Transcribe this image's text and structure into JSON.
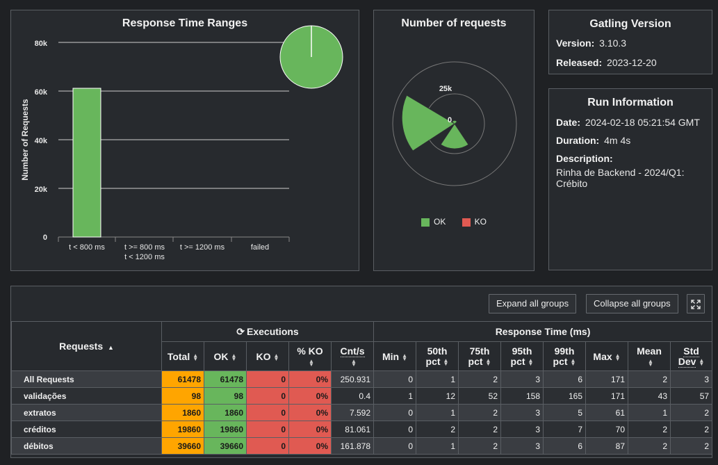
{
  "response_time_ranges": {
    "title": "Response Time Ranges",
    "ylabel": "Number of Requests",
    "y_ticks": [
      "80k",
      "60k",
      "40k",
      "20k",
      "0"
    ],
    "categories": [
      "t < 800 ms",
      "t >= 800 ms",
      "t < 1200 ms",
      "t >= 1200 ms",
      "failed"
    ]
  },
  "number_of_requests": {
    "title": "Number of requests",
    "tick_outer": "25k",
    "tick_inner": "0",
    "legend": [
      {
        "label": "OK",
        "color": "#68b65c"
      },
      {
        "label": "KO",
        "color": "#e05a52"
      }
    ]
  },
  "gatling_version": {
    "title": "Gatling Version",
    "version_label": "Version:",
    "version": "3.10.3",
    "released_label": "Released:",
    "released": "2023-12-20"
  },
  "run_information": {
    "title": "Run Information",
    "date_label": "Date:",
    "date": "2024-02-18 05:21:54 GMT",
    "duration_label": "Duration:",
    "duration": "4m 4s",
    "description_label": "Description:",
    "description": "Rinha de Backend - 2024/Q1: Crébito"
  },
  "stats": {
    "expand_label": "Expand all groups",
    "collapse_label": "Collapse all groups",
    "requests_header": "Requests",
    "executions_header": "Executions",
    "response_time_header": "Response Time (ms)",
    "columns": [
      "Total",
      "OK",
      "KO",
      "% KO",
      "Cnt/s",
      "Min",
      "50th pct",
      "75th pct",
      "95th pct",
      "99th pct",
      "Max",
      "Mean",
      "Std Dev"
    ],
    "rows": [
      {
        "name": "All Requests",
        "total": "61478",
        "ok": "61478",
        "ko": "0",
        "pct_ko": "0%",
        "cnt": "250.931",
        "min": "0",
        "p50": "1",
        "p75": "2",
        "p95": "3",
        "p99": "6",
        "max": "171",
        "mean": "2",
        "std": "3"
      },
      {
        "name": "validações",
        "total": "98",
        "ok": "98",
        "ko": "0",
        "pct_ko": "0%",
        "cnt": "0.4",
        "min": "1",
        "p50": "12",
        "p75": "52",
        "p95": "158",
        "p99": "165",
        "max": "171",
        "mean": "43",
        "std": "57"
      },
      {
        "name": "extratos",
        "total": "1860",
        "ok": "1860",
        "ko": "0",
        "pct_ko": "0%",
        "cnt": "7.592",
        "min": "0",
        "p50": "1",
        "p75": "2",
        "p95": "3",
        "p99": "5",
        "max": "61",
        "mean": "1",
        "std": "2"
      },
      {
        "name": "créditos",
        "total": "19860",
        "ok": "19860",
        "ko": "0",
        "pct_ko": "0%",
        "cnt": "81.061",
        "min": "0",
        "p50": "2",
        "p75": "2",
        "p95": "3",
        "p99": "7",
        "max": "70",
        "mean": "2",
        "std": "2"
      },
      {
        "name": "débitos",
        "total": "39660",
        "ok": "39660",
        "ko": "0",
        "pct_ko": "0%",
        "cnt": "161.878",
        "min": "0",
        "p50": "1",
        "p75": "2",
        "p95": "3",
        "p99": "6",
        "max": "87",
        "mean": "2",
        "std": "2"
      }
    ]
  }
}
